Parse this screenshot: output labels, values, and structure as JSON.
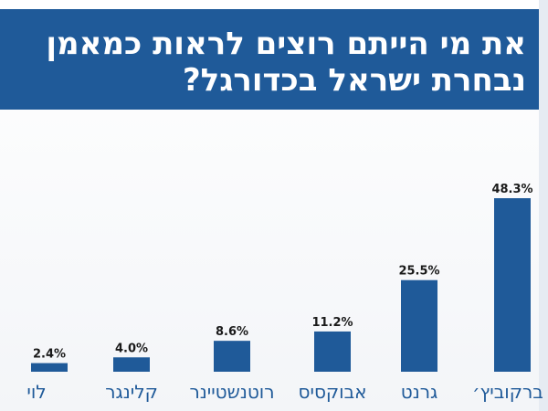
{
  "title": {
    "line1": "את מי הייתם רוצים לראות כמאמן",
    "line2": "נבחרת ישראל בכדורגל?"
  },
  "colors": {
    "banner": "#1f5a99",
    "bar": "#1f5a99",
    "category_text": "#1f5a99",
    "value_text": "#1a1a1a"
  },
  "chart_data": {
    "type": "bar",
    "title": "את מי הייתם רוצים לראות כמאמן נבחרת ישראל בכדורגל?",
    "xlabel": "",
    "ylabel": "",
    "ylim": [
      0,
      50
    ],
    "categories": [
      "ברקוביץ׳",
      "גרנט",
      "אבוקסיס",
      "רוטנשטיינר",
      "קלינגר",
      "לוי"
    ],
    "values": [
      48.3,
      25.5,
      11.2,
      8.6,
      4.0,
      2.4
    ],
    "value_labels": [
      "48.3%",
      "25.5%",
      "11.2%",
      "8.6%",
      "4.0%",
      "2.4%"
    ]
  }
}
